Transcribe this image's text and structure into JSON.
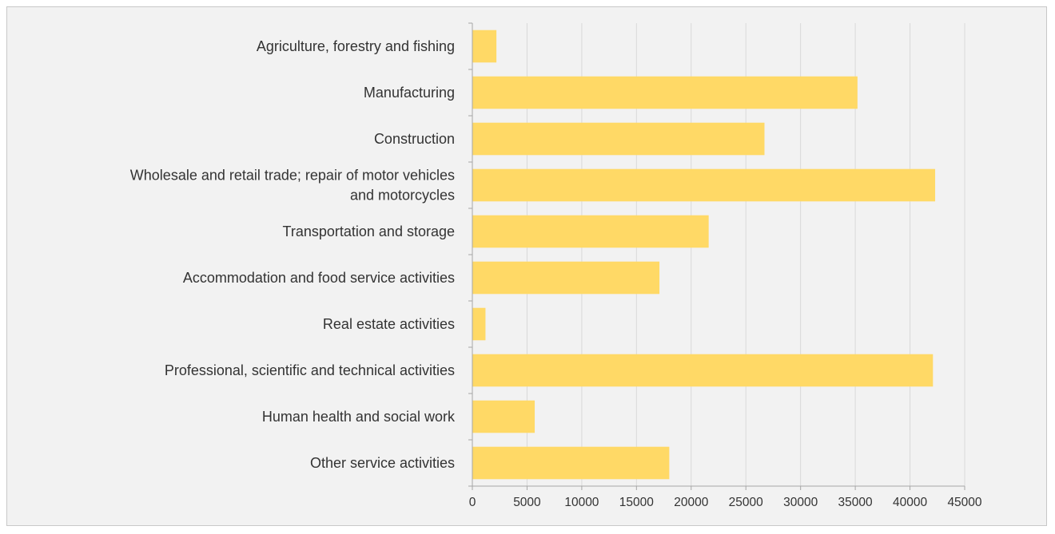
{
  "chart_data": {
    "type": "bar",
    "orientation": "horizontal",
    "categories": [
      [
        "Agriculture, forestry and fishing"
      ],
      [
        "Manufacturing"
      ],
      [
        "Construction"
      ],
      [
        "Wholesale and retail trade; repair of motor vehicles",
        "and motorcycles"
      ],
      [
        "Transportation and storage"
      ],
      [
        "Accommodation and food service activities"
      ],
      [
        "Real estate activities"
      ],
      [
        "Professional, scientific and technical activities"
      ],
      [
        "Human health and social work"
      ],
      [
        "Other service activities"
      ]
    ],
    "values": [
      2200,
      35200,
      26700,
      42300,
      21600,
      17100,
      1200,
      42100,
      5700,
      18000
    ],
    "xlim": [
      0,
      45000
    ],
    "xticks": [
      0,
      5000,
      10000,
      15000,
      20000,
      25000,
      30000,
      35000,
      40000,
      45000
    ],
    "title": "",
    "xlabel": "",
    "ylabel": "",
    "grid": "vertical",
    "legend": "none",
    "bar_color": "#ffd966",
    "background_color": "#f2f2f2",
    "gridline_color": "#d9d9d9",
    "axis_color": "#a6a6a6"
  }
}
